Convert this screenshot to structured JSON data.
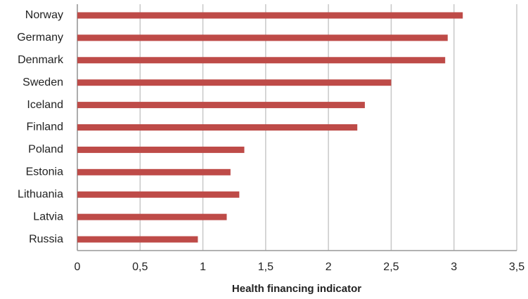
{
  "chart_data": {
    "type": "barh",
    "xlabel": "Health financing indicator",
    "categories": [
      "Norway",
      "Germany",
      "Denmark",
      "Sweden",
      "Iceland",
      "Finland",
      "Poland",
      "Estonia",
      "Lithuania",
      "Latvia",
      "Russia"
    ],
    "values": [
      3.07,
      2.95,
      2.93,
      2.5,
      2.29,
      2.23,
      1.33,
      1.22,
      1.29,
      1.19,
      0.96
    ],
    "color": "#be4b48",
    "xlim": [
      0,
      3.5
    ],
    "xticks": [
      0,
      {
        "value": 0.5,
        "label": "0,5"
      },
      1,
      {
        "value": 1.5,
        "label": "1,5"
      },
      2,
      {
        "value": 2.5,
        "label": "2,5"
      },
      3,
      {
        "value": 3.5,
        "label": "3,5"
      }
    ],
    "grid": true
  }
}
